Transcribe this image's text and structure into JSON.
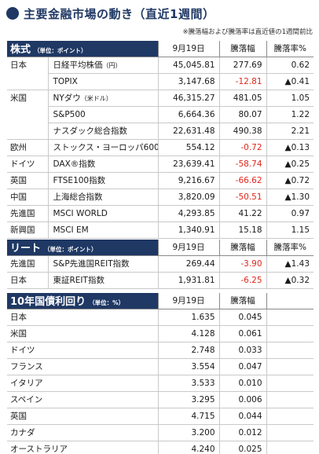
{
  "title": "主要金融市場の動き（直近1週間）",
  "note": "※騰落幅および騰落率は直近値の1週間前比",
  "colors": {
    "header_bg": "#1f3864",
    "negative": "#e0261b"
  },
  "equity": {
    "section": "株式",
    "unit": "（単位：ポイント）",
    "col_date": "9月19日",
    "col_change": "騰落幅",
    "col_rate": "騰落率%",
    "rows": [
      {
        "country": "日本",
        "name": "日経平均株価",
        "name_note": "（円）",
        "value": "45,045.81",
        "change": "277.69",
        "rate": "0.62",
        "change_neg": false,
        "rate_neg": false
      },
      {
        "country": "",
        "name": "TOPIX",
        "name_note": "",
        "value": "3,147.68",
        "change": "-12.81",
        "rate": "▲0.41",
        "change_neg": true,
        "rate_neg": false
      },
      {
        "country": "米国",
        "name": "NYダウ",
        "name_note": "（米ドル）",
        "value": "46,315.27",
        "change": "481.05",
        "rate": "1.05",
        "change_neg": false,
        "rate_neg": false
      },
      {
        "country": "",
        "name": "S&P500",
        "name_note": "",
        "value": "6,664.36",
        "change": "80.07",
        "rate": "1.22",
        "change_neg": false,
        "rate_neg": false
      },
      {
        "country": "",
        "name": "ナスダック総合指数",
        "name_note": "",
        "value": "22,631.48",
        "change": "490.38",
        "rate": "2.21",
        "change_neg": false,
        "rate_neg": false
      },
      {
        "country": "欧州",
        "name": "ストックス・ヨーロッパ600",
        "name_note": "",
        "value": "554.12",
        "change": "-0.72",
        "rate": "▲0.13",
        "change_neg": true,
        "rate_neg": false
      },
      {
        "country": "ドイツ",
        "name": "DAX®指数",
        "name_note": "",
        "value": "23,639.41",
        "change": "-58.74",
        "rate": "▲0.25",
        "change_neg": true,
        "rate_neg": false
      },
      {
        "country": "英国",
        "name": "FTSE100指数",
        "name_note": "",
        "value": "9,216.67",
        "change": "-66.62",
        "rate": "▲0.72",
        "change_neg": true,
        "rate_neg": false
      },
      {
        "country": "中国",
        "name": "上海総合指数",
        "name_note": "",
        "value": "3,820.09",
        "change": "-50.51",
        "rate": "▲1.30",
        "change_neg": true,
        "rate_neg": false
      },
      {
        "country": "先進国",
        "name": "MSCI WORLD",
        "name_note": "",
        "value": "4,293.85",
        "change": "41.22",
        "rate": "0.97",
        "change_neg": false,
        "rate_neg": false
      },
      {
        "country": "新興国",
        "name": "MSCI EM",
        "name_note": "",
        "value": "1,340.91",
        "change": "15.18",
        "rate": "1.15",
        "change_neg": false,
        "rate_neg": false
      }
    ]
  },
  "reit": {
    "section": "リート",
    "unit": "（単位：ポイント）",
    "col_date": "9月19日",
    "col_change": "騰落幅",
    "col_rate": "騰落率%",
    "rows": [
      {
        "country": "先進国",
        "name": "S&P先進国REIT指数",
        "value": "269.44",
        "change": "-3.90",
        "rate": "▲1.43",
        "change_neg": true
      },
      {
        "country": "日本",
        "name": "東証REIT指数",
        "value": "1,931.81",
        "change": "-6.25",
        "rate": "▲0.32",
        "change_neg": true
      }
    ]
  },
  "bond": {
    "section": "10年国債利回り",
    "unit": "（単位：%）",
    "col_date": "9月19日",
    "col_change": "騰落幅",
    "rows": [
      {
        "country": "日本",
        "value": "1.635",
        "change": "0.045"
      },
      {
        "country": "米国",
        "value": "4.128",
        "change": "0.061"
      },
      {
        "country": "ドイツ",
        "value": "2.748",
        "change": "0.033"
      },
      {
        "country": "フランス",
        "value": "3.554",
        "change": "0.047"
      },
      {
        "country": "イタリア",
        "value": "3.533",
        "change": "0.010"
      },
      {
        "country": "スペイン",
        "value": "3.295",
        "change": "0.006"
      },
      {
        "country": "英国",
        "value": "4.715",
        "change": "0.044"
      },
      {
        "country": "カナダ",
        "value": "3.200",
        "change": "0.012"
      },
      {
        "country": "オーストラリア",
        "value": "4.240",
        "change": "0.025"
      }
    ]
  }
}
